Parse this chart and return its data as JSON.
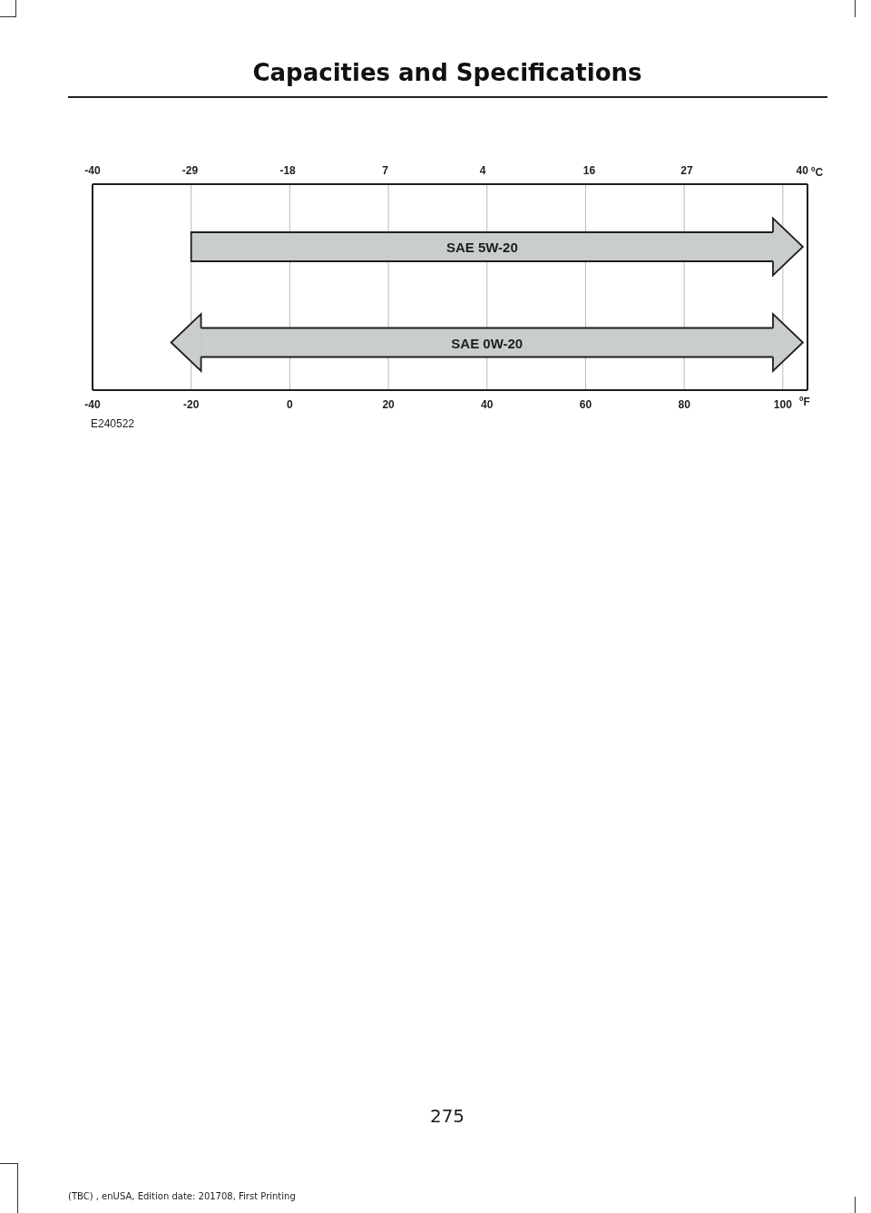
{
  "chart_data": {
    "type": "bar",
    "orientation": "horizontal",
    "title": "Capacities and Specifications",
    "categories": [
      "SAE 5W-20",
      "SAE 0W-20"
    ],
    "values": [
      118,
      116
    ],
    "base": [
      -20,
      -18
    ],
    "color": "#c9cdcb",
    "xlim": [
      -40,
      105
    ],
    "xticks": [
      -40,
      -20,
      0,
      20,
      40,
      60,
      80,
      100
    ],
    "xlabel": "ºF",
    "x2lim": [
      -40,
      40.6
    ],
    "x2ticks": [
      -40,
      -29,
      -18,
      {
        "value": -7,
        "label": "7"
      },
      4,
      16,
      27,
      40
    ],
    "x2label": "ºC",
    "grid": "x",
    "annotations": [
      "E240522",
      "275",
      "(TBC) , enUSA, Edition date: 201708, First Printing"
    ]
  }
}
